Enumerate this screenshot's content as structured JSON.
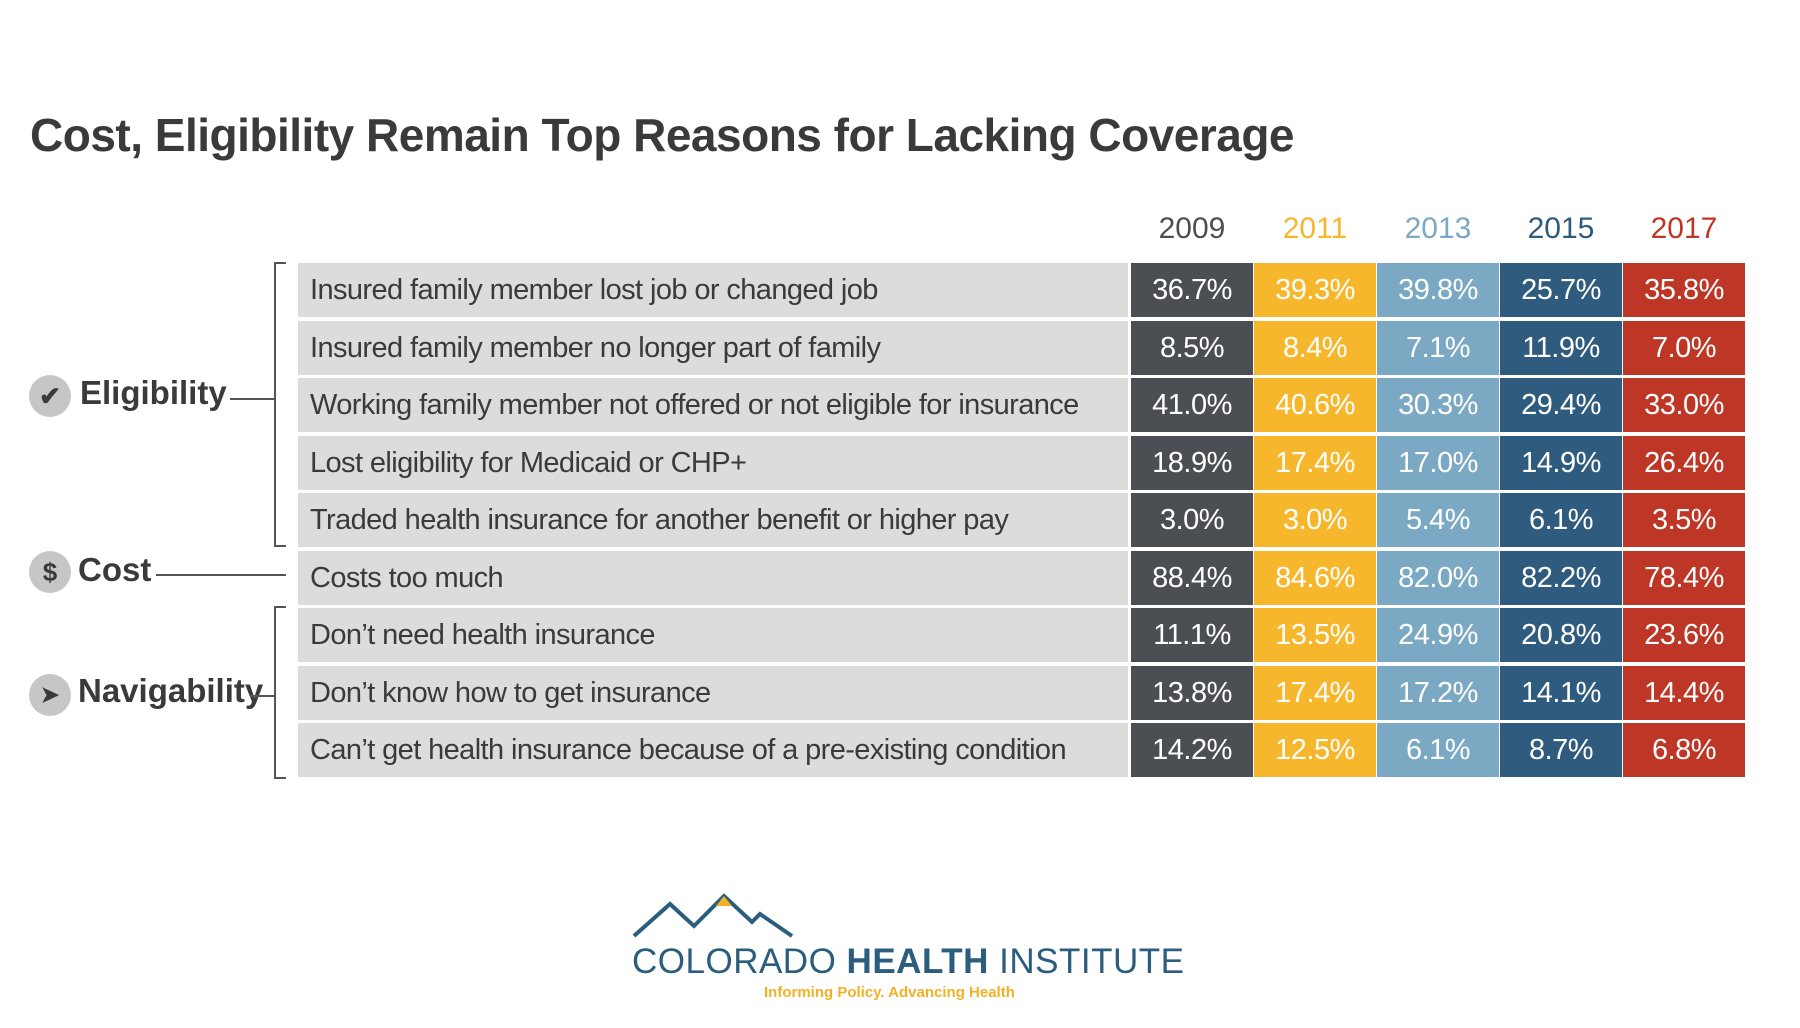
{
  "chart_data": {
    "type": "table",
    "title": "Cost, Eligibility Remain Top Reasons for Lacking Coverage",
    "columns": [
      {
        "label": "2009",
        "color": "#4b4f54"
      },
      {
        "label": "2011",
        "color": "#f7b72d"
      },
      {
        "label": "2013",
        "color": "#7ba9c4"
      },
      {
        "label": "2015",
        "color": "#2f5b7e"
      },
      {
        "label": "2017",
        "color": "#be3626"
      }
    ],
    "groups": [
      {
        "label": "Eligibility",
        "icon": "checkmark-icon",
        "glyph": "✔"
      },
      {
        "label": "Cost",
        "icon": "dollar-icon",
        "glyph": "$"
      },
      {
        "label": "Navigability",
        "icon": "cursor-icon",
        "glyph": "➤"
      }
    ],
    "rows": [
      {
        "label": "Insured family member lost job or changed job",
        "group": "Eligibility",
        "values": [
          "36.7%",
          "39.3%",
          "39.8%",
          "25.7%",
          "35.8%"
        ]
      },
      {
        "label": "Insured family member no longer part of family",
        "group": "Eligibility",
        "values": [
          "8.5%",
          "8.4%",
          "7.1%",
          "11.9%",
          "7.0%"
        ]
      },
      {
        "label": "Working family member not offered or not eligible for insurance",
        "group": "Eligibility",
        "values": [
          "41.0%",
          "40.6%",
          "30.3%",
          "29.4%",
          "33.0%"
        ]
      },
      {
        "label": "Lost eligibility for Medicaid or CHP+",
        "group": "Eligibility",
        "values": [
          "18.9%",
          "17.4%",
          "17.0%",
          "14.9%",
          "26.4%"
        ]
      },
      {
        "label": "Traded health insurance for another benefit or higher pay",
        "group": "Eligibility",
        "values": [
          "3.0%",
          "3.0%",
          "5.4%",
          "6.1%",
          "3.5%"
        ]
      },
      {
        "label": "Costs too much",
        "group": "Cost",
        "values": [
          "88.4%",
          "84.6%",
          "82.0%",
          "82.2%",
          "78.4%"
        ]
      },
      {
        "label": "Don’t need health insurance",
        "group": "Navigability",
        "values": [
          "11.1%",
          "13.5%",
          "24.9%",
          "20.8%",
          "23.6%"
        ]
      },
      {
        "label": "Don’t know how to get insurance",
        "group": "Navigability",
        "values": [
          "13.8%",
          "17.4%",
          "17.2%",
          "14.1%",
          "14.4%"
        ]
      },
      {
        "label": "Can’t get health insurance because of a pre-existing condition",
        "group": "Navigability",
        "values": [
          "14.2%",
          "12.5%",
          "6.1%",
          "8.7%",
          "6.8%"
        ]
      }
    ]
  },
  "logo": {
    "name_light": "COLORADO ",
    "name_bold": "HEALTH",
    "name_end": " INSTITUTE",
    "tagline": "Informing Policy. Advancing Health",
    "mountain_color": "#2a5d7e",
    "peak_color": "#f2b124"
  }
}
